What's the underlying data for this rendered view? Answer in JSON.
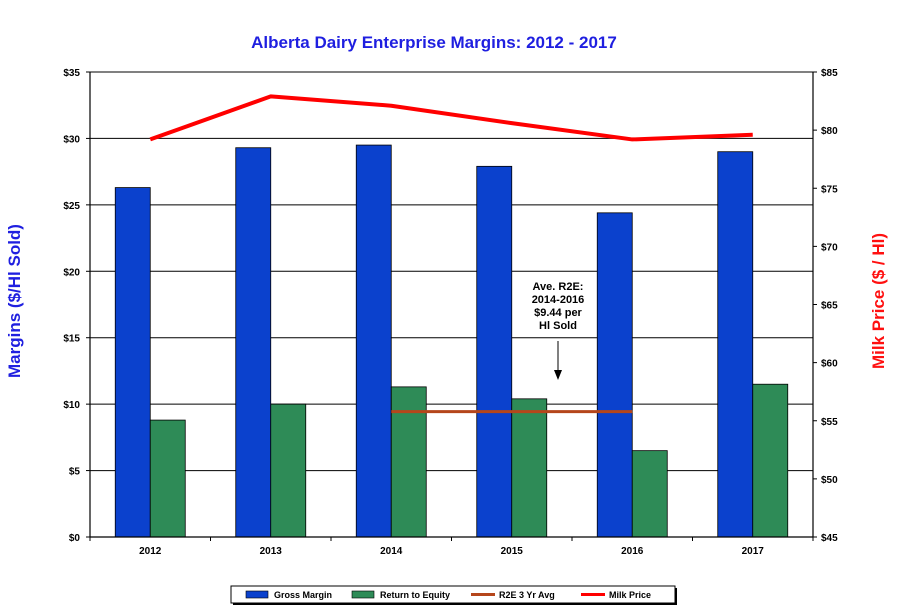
{
  "chart_data": {
    "type": "bar",
    "title": "Alberta Dairy Enterprise Margins:  2012 - 2017",
    "ylabel": "Margins ($/Hl Sold)",
    "ylabel_right": "Milk Price ($ / Hl)",
    "categories": [
      "2012",
      "2013",
      "2014",
      "2015",
      "2016",
      "2017"
    ],
    "ylim": [
      0,
      35
    ],
    "ylim_right": [
      45,
      85
    ],
    "yticks": [
      "$0",
      "$5",
      "$10",
      "$15",
      "$20",
      "$25",
      "$30",
      "$35"
    ],
    "yticks_right": [
      "$45",
      "$50",
      "$55",
      "$60",
      "$65",
      "$70",
      "$75",
      "$80",
      "$85"
    ],
    "grid": true,
    "legend_placement": "bottom",
    "series": [
      {
        "name": "Gross Margin",
        "type": "bar",
        "axis": "left",
        "color": "#0b41cd",
        "values": [
          26.3,
          29.3,
          29.5,
          27.9,
          24.4,
          29.0
        ]
      },
      {
        "name": "Return to Equity",
        "type": "bar",
        "axis": "left",
        "color": "#2e8b57",
        "values": [
          8.8,
          10.0,
          11.3,
          10.4,
          6.5,
          11.5
        ]
      },
      {
        "name": "R2E 3 Yr Avg",
        "type": "line",
        "axis": "left",
        "color": "#b5461b",
        "x": [
          "2014",
          "2016"
        ],
        "values": [
          9.44,
          9.44
        ]
      },
      {
        "name": "Milk Price",
        "type": "line",
        "axis": "right",
        "color": "#ff0000",
        "values": [
          79.2,
          82.9,
          82.1,
          80.6,
          79.2,
          79.6
        ]
      }
    ],
    "annotation": {
      "lines": [
        "Ave. R2E:",
        "2014-2016",
        "$9.44 per",
        "Hl  Sold"
      ]
    }
  }
}
